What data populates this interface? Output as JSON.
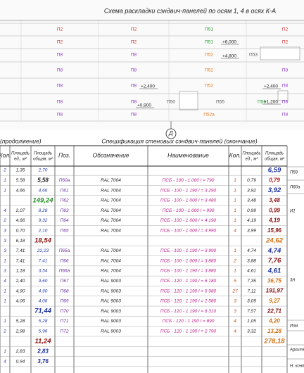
{
  "plan": {
    "title": "Схема раскладки сэндвич-панелей по осям 1, 4 в осях К-А",
    "rows": [
      [
        "П2",
        "П2",
        "П51",
        "П2"
      ],
      [
        "П2",
        "П2",
        "П51",
        "П2"
      ],
      [
        "П8",
        "П8",
        "П52",
        "П53"
      ],
      [
        "П8",
        "П8",
        "П52",
        "П8"
      ],
      [
        "П8",
        "П8",
        "П52",
        "П8"
      ],
      [
        "П8",
        "П8",
        "П50",
        "П55",
        "П56",
        "П8"
      ],
      [
        "П8",
        "П8",
        "П52а",
        "П8"
      ]
    ],
    "levels": [
      "+6,000",
      "+4,800",
      "+2,400",
      "+2,400",
      "+1,200",
      "+0,900"
    ],
    "axis": "Д"
  },
  "left_heading": "(продолжение)",
  "heading": "Спецификация стеновых сэндвич-панелей (окончание)",
  "table": {
    "header": [
      [
        "Кол."
      ],
      [
        "Площадь",
        "ед., м²"
      ],
      [
        "Площадь",
        "общая, м²"
      ],
      [
        "Поз."
      ],
      [
        "Обозначение"
      ],
      [
        "Наименование"
      ],
      [
        "Кол."
      ],
      [
        "Площадь",
        "ед., м²"
      ],
      [
        "Площадь",
        "общая, м²"
      ]
    ],
    "rows": [
      [
        "2",
        "1,35",
        "2,70",
        null,
        null,
        null,
        null,
        null,
        "6,59"
      ],
      [
        "1",
        "5.58",
        "5,58",
        "П60а",
        "RAL 7004",
        "ПСБ - 100 - 1 000  l = 790",
        "1",
        "0,79",
        "0,79"
      ],
      [
        "1",
        "4,66",
        "4,66",
        "П61",
        "RAL 7004",
        "ПСБ - 100 - 1 190  l = 3 290",
        "1",
        "3,92",
        "3,92"
      ],
      [
        null,
        null,
        "149,24",
        "П62",
        "RAL 7004",
        "ПСБ - 100 - 1 000  l = 3 480",
        "1",
        "3,48",
        "3,48"
      ],
      [
        "4",
        "2,07",
        "8,28",
        "П63",
        "RAL 7004",
        "ПСБ - 100 - 1 000  l = 990",
        "1",
        "0,99",
        "0,99"
      ],
      [
        "2",
        "4,66",
        "9,32",
        "П64",
        "RAL 7004",
        "ПСБ - 100 - 1 000  l = 4 190",
        "1",
        "4,19",
        "4,19"
      ],
      [
        "3",
        "0,70",
        "2,10",
        "П65",
        "RAL 7004",
        "ПСБ - 100 - 1 000  l = 3 990",
        "4",
        "3,99",
        "15,96"
      ],
      [
        "3",
        "6,18",
        "18,54",
        null,
        null,
        null,
        null,
        null,
        "24,62"
      ],
      [
        "3",
        "7,41",
        "22,23",
        "П65а",
        "RAL 7004",
        "ПСБ - 100 - 1 190  l = 3 990",
        "1",
        "4,74",
        "4,74"
      ],
      [
        "1",
        "7,41",
        "7,41",
        "П66",
        "RAL 7004",
        "ПСБ - 100 - 1 000  l = 3 880",
        "2",
        "3,88",
        "7,76"
      ],
      [
        "3",
        "1,18",
        "3,54",
        "П66а",
        "RAL 7004",
        "ПСБ - 100 - 1 190  l = 3 880",
        "1",
        "4,61",
        "4,61"
      ],
      [
        "4",
        "2,40",
        "9,60",
        "П67",
        "RAL 9003",
        "ПСБ - 120 - 1 190  l = 6 180",
        "5",
        "7,35",
        "36,75"
      ],
      [
        "1",
        "4,90",
        "4,90",
        "П68",
        "RAL 9003",
        "ПСБ - 120 - 1 190  l = 5 980",
        "27",
        "7,11",
        "191,97"
      ],
      [
        "1",
        "4,06",
        "4,06",
        "П69",
        "RAL 9003",
        "ПСБ - 120 - 1 190  l = 2 580",
        "3",
        "3,09",
        "9,27"
      ],
      [
        null,
        null,
        "71,44",
        "П70",
        "RAL 9003",
        "ПСБ - 120 - 1 190  l = 6 310",
        "3",
        "7,57",
        "22,71"
      ],
      [
        "1",
        "5,28",
        "5,28",
        "П71",
        "RAL 9003",
        "ПСБ - 120 - 1 190  l = 890",
        "4",
        "1,05",
        "4,20"
      ],
      [
        "2",
        "2,98",
        "5,96",
        "П72",
        "RAL 9003",
        "ПСБ - 120 - 1 190  l = 2 790",
        "4",
        "3,32",
        "13,28"
      ],
      [
        null,
        null,
        "11,24",
        null,
        null,
        null,
        null,
        null,
        "278,18"
      ],
      [
        "1",
        "2,83",
        "2,83",
        null,
        null,
        null,
        null,
        null,
        null
      ],
      [
        "4",
        "0,94",
        "3,76",
        null,
        null,
        null,
        null,
        null,
        null
      ]
    ]
  },
  "side": [
    "П59",
    "П60а",
    "И1",
    "3А",
    "Изм.",
    "Архитект.",
    "Н. контр."
  ]
}
